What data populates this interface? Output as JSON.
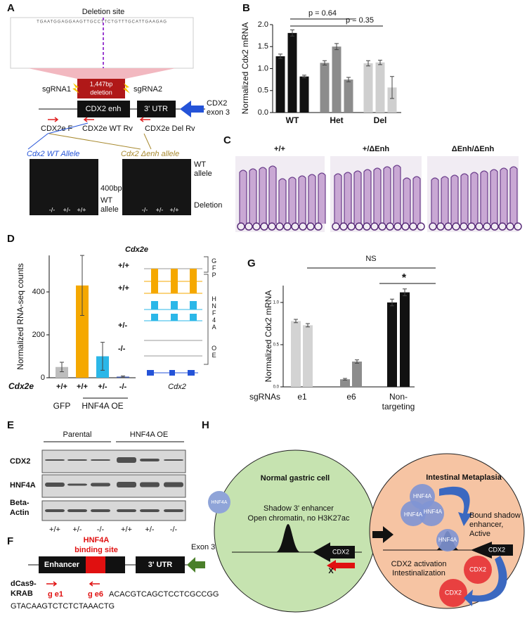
{
  "panels": {
    "A": {
      "label": "A",
      "title": "Deletion site",
      "sequence": "TGAATGGAGGAAGTTGCCTTCTGTTTGCATTGAAGAG",
      "deletion": [
        "1,447bp",
        "deletion"
      ],
      "sgrna1": "sgRNA1",
      "sgrna2": "sgRNA2",
      "enh": "CDX2 enh",
      "utr": "3' UTR",
      "exon": [
        "CDX2",
        "exon 3"
      ],
      "primer_f": "CDX2e F",
      "primer_wt": "CDX2e WT Rv",
      "primer_del": "CDX2e Del Rv",
      "gel1_title": "Cdx2 WT Allele",
      "gel2_title": "Cdx2 Δenh allele",
      "size": "400bp",
      "gel1_band": [
        "WT",
        "allele"
      ],
      "gel2_band_top": [
        "WT",
        "allele"
      ],
      "gel2_band_bottom": "Deletion",
      "gel1_lanes": [
        "-/-",
        "+/-",
        "+/+"
      ],
      "gel2_lanes": [
        "-/-",
        "+/-",
        "+/+"
      ]
    },
    "B": {
      "label": "B",
      "p1": "p = 0.64",
      "p2": "p = 0.35"
    },
    "C": {
      "label": "C",
      "genotypes": [
        "+/+",
        "+/ΔEnh",
        "ΔEnh/ΔEnh"
      ]
    },
    "D": {
      "label": "D",
      "track_title": "Cdx2e",
      "track_genotypes": [
        "+/+",
        "+/+",
        "+/-",
        "-/-"
      ],
      "gene": "Cdx2",
      "track_groups": [
        "GFP",
        "HNF4A",
        "OE"
      ]
    },
    "E": {
      "label": "E",
      "groups": [
        "Parental",
        "HNF4A OE"
      ],
      "rows": [
        "CDX2",
        "HNF4A",
        "Beta-",
        "Actin"
      ],
      "lanes": [
        "+/+",
        "+/-",
        "-/-",
        "+/+",
        "+/-",
        "-/-"
      ]
    },
    "F": {
      "label": "F",
      "site": [
        "HNF4A",
        "binding site"
      ],
      "exon": "Exon 3",
      "enh": "Enhancer",
      "utr": "3' UTR",
      "dcas": [
        "dCas9-",
        "KRAB"
      ],
      "g1": "g e1",
      "g6": "g e6",
      "seq6": "ACACGTCAGCTCCTCGCCGG",
      "seq1": "GTACAAGTCTCTCTAAACTG"
    },
    "G": {
      "label": "G",
      "ns": "NS",
      "star": "*"
    },
    "H": {
      "label": "H",
      "normal_title": "Normal gastric cell",
      "hnf4a": "HNF4A",
      "enhancer": [
        "Shadow 3' enhancer",
        "Open chromatin, no H3K27ac"
      ],
      "cdx2": "CDX2",
      "x": "X",
      "meta_title": "Intestinal Metaplasia",
      "bound": [
        "Bound shadow",
        "enhancer,",
        "Active"
      ],
      "meta_hnf4a": [
        "HNF4A",
        "HNF4A",
        "HNF4A",
        "HNF4A"
      ],
      "meta_cdx2": [
        "CDX2",
        "CDX2",
        "CDX2"
      ],
      "activation": [
        "CDX2 activation",
        "Intestinalization"
      ]
    }
  },
  "chart_data": [
    {
      "type": "bar",
      "y_label": "Normalized Cdx2 mRNA",
      "ylim": [
        0,
        2.0
      ],
      "yticks": [
        {
          "value": 0,
          "label": "0.0"
        },
        0.5,
        {
          "value": 1,
          "label": "1.0"
        },
        1.5,
        {
          "value": 2,
          "label": "2.0"
        }
      ],
      "categories": [
        null,
        null,
        null,
        null,
        null,
        null,
        null,
        null,
        null
      ],
      "values": [
        1.28,
        1.81,
        0.82,
        1.13,
        1.5,
        0.75,
        1.12,
        1.14,
        0.57
      ],
      "errors": [
        0.05,
        0.07,
        0.03,
        0.05,
        0.07,
        0.05,
        0.06,
        0.05,
        0.25
      ],
      "colors": [
        "#111111",
        "#111111",
        "#111111",
        "#8c8c8c",
        "#8c8c8c",
        "#8c8c8c",
        "#cfcfcf",
        "#cfcfcf",
        "#cfcfcf"
      ],
      "group_labels": [
        "WT",
        "Het",
        "Del"
      ]
    },
    {
      "type": "bar",
      "y_label": "Normalized RNA-seq counts",
      "row_label": "Cdx2e",
      "ylim": [
        0,
        570
      ],
      "yticks": [
        0,
        200,
        400
      ],
      "categories": [
        "+/+",
        "+/+",
        "+/-",
        "-/-"
      ],
      "values": [
        50,
        430,
        100,
        5
      ],
      "errors": [
        22,
        140,
        65,
        3
      ],
      "colors": [
        "#bdbdbd",
        "#f5a800",
        "#2bb7e8",
        "#3a55a8"
      ],
      "group_labels": [
        "GFP",
        "HNF4A OE"
      ]
    },
    {
      "type": "bar",
      "y_label": "Normalized Cdx2 mRNA",
      "row_label": "sgRNAs",
      "ylim": [
        0,
        1.2
      ],
      "yticks": [
        {
          "value": 0,
          "label": "0.0"
        },
        0.5,
        {
          "value": 1,
          "label": "1.0"
        }
      ],
      "categories": [
        null,
        null,
        null,
        null,
        null,
        null
      ],
      "values": [
        0.78,
        0.73,
        0.09,
        0.3,
        1.0,
        1.12
      ],
      "errors": [
        0.02,
        0.02,
        0.01,
        0.02,
        0.04,
        0.04
      ],
      "colors": [
        "#d3d3d3",
        "#d3d3d3",
        "#8c8c8c",
        "#8c8c8c",
        "#111111",
        "#111111"
      ],
      "group_labels": [
        "e1",
        "e6",
        [
          "Non-",
          "targeting"
        ]
      ]
    }
  ]
}
